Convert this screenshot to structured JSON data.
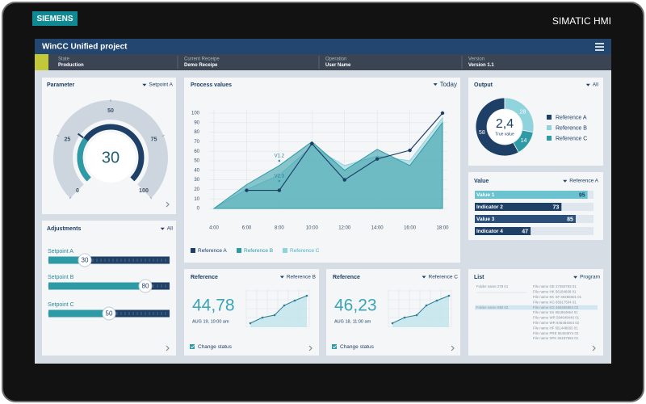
{
  "device": {
    "brand": "SIEMENS",
    "model": "SIMATIC HMI"
  },
  "header": {
    "title": "WinCC Unified project"
  },
  "status": [
    {
      "label": "State",
      "value": "Production"
    },
    {
      "label": "Current Receipe",
      "value": "Demo Receipe"
    },
    {
      "label": "Operation",
      "value": "User Name"
    },
    {
      "label": "Version",
      "value": "Version 1.1"
    }
  ],
  "parameter": {
    "title": "Parameter",
    "selector": "Setpoint A",
    "value": 30,
    "lim": [
      0,
      100
    ],
    "ticks": [
      0,
      25,
      50,
      75,
      100
    ]
  },
  "adjustments": {
    "title": "Adjustments",
    "selector": "All",
    "xlim": [
      0,
      100
    ],
    "items": [
      {
        "name": "Setpoint A",
        "value": 30
      },
      {
        "name": "Setpoint B",
        "value": 80
      },
      {
        "name": "Setpoint C",
        "value": 50
      }
    ]
  },
  "process": {
    "type": "line",
    "title": "Process values",
    "selector": "Today",
    "categories": [
      "4:00",
      "6:00",
      "8:00",
      "10:00",
      "12:00",
      "14:00",
      "16:00",
      "18:00"
    ],
    "ylim": [
      0,
      100
    ],
    "yticks": [
      0,
      10,
      20,
      30,
      40,
      50,
      60,
      70,
      80,
      90,
      100
    ],
    "series": [
      {
        "name": "Reference A",
        "color": "#1e3f66",
        "mark": "line",
        "values": [
          null,
          19,
          19,
          68,
          30,
          52,
          61,
          100
        ]
      },
      {
        "name": "Reference B",
        "color": "#2e9aa6",
        "mark": "area",
        "values": [
          0,
          25,
          45,
          70,
          40,
          62,
          45,
          90
        ]
      },
      {
        "name": "Reference C",
        "color": "#8fd3dc",
        "mark": "area",
        "values": [
          0,
          20,
          35,
          65,
          45,
          55,
          50,
          95
        ]
      }
    ],
    "annotations": [
      "V1.2",
      "V2.3"
    ]
  },
  "output": {
    "type": "pie",
    "title": "Output",
    "selector": "All",
    "center_value": "2,4",
    "center_label": "True value",
    "categories": [
      "Reference A",
      "Reference B",
      "Reference C"
    ],
    "values": [
      58,
      28,
      14
    ],
    "colors": [
      "#1e3f66",
      "#8fd3dc",
      "#2e9aa6"
    ]
  },
  "value_list": {
    "title": "Value",
    "selector": "Reference A",
    "xlim": [
      0,
      100
    ],
    "items": [
      {
        "name": "Value 1",
        "value": 95,
        "color": "#6cc3d0"
      },
      {
        "name": "Indicator 2",
        "value": 73,
        "color": "#1e3f66"
      },
      {
        "name": "Value 3",
        "value": 85,
        "color": "#2b4f78"
      },
      {
        "name": "Indicator 4",
        "value": 47,
        "color": "#1e3f66"
      }
    ]
  },
  "references": [
    {
      "title": "Reference",
      "selector": "Reference B",
      "value": "44,78",
      "date": "AUG 19, 10:00 am",
      "checkbox": "Change status"
    },
    {
      "title": "Reference",
      "selector": "Reference C",
      "value": "46,23",
      "date": "AUG 18, 11:00 am",
      "checkbox": "Change status"
    }
  ],
  "list": {
    "title": "List",
    "selector": "Program",
    "folders": [
      "Folder name 278 01",
      "Folder name INB 02"
    ],
    "files": [
      "File name GE 27450793 01",
      "File name HK 56184668 01",
      "File name KK SF 69456601 01",
      "File name KG 65817504 01",
      "File name KG 468456884 02",
      "File name SS 651864664 01",
      "File name WR 584648446 01",
      "File name WR 845484564 02",
      "File name HF 651448665 01",
      "File name PRE 65484874 02",
      "File name SPK 65187584 01"
    ]
  }
}
